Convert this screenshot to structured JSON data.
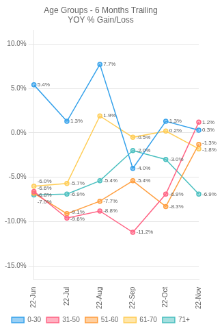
{
  "chart_data": {
    "type": "line",
    "title": "Age Groups - 6 Months Trailing\nYOY % Gain/Loss",
    "categories": [
      "22-Jun",
      "22-Jul",
      "22-Aug",
      "22-Sep",
      "22-Oct",
      "22-Nov"
    ],
    "series": [
      {
        "name": "0-30",
        "values": [
          5.4,
          1.3,
          7.7,
          -4.0,
          1.3,
          0.3
        ],
        "value_labels": [
          "5.4%",
          "1.3%",
          "7.7%",
          "-4.0%",
          "1.3%",
          "0.3%"
        ]
      },
      {
        "name": "31-50",
        "values": [
          -6.6,
          -9.6,
          -8.8,
          -11.2,
          -6.9,
          1.2
        ],
        "value_labels": [
          "-6.6%",
          "-9.6%",
          "-8.8%",
          "-11.2%",
          "-6.9%",
          "1.2%"
        ]
      },
      {
        "name": "51-60",
        "values": [
          -6.8,
          -9.1,
          -7.7,
          -5.4,
          -8.3,
          -1.3
        ],
        "value_labels": [
          "-6.8%",
          "-9.1%",
          "-7.7%",
          "-5.4%",
          "-8.3%",
          "-1.3%"
        ]
      },
      {
        "name": "61-70",
        "values": [
          -6.0,
          -5.7,
          1.9,
          -0.5,
          0.2,
          -1.8
        ],
        "value_labels": [
          "-6.0%",
          "-5.7%",
          "1.9%",
          "-0.5%",
          "0.2%",
          "-1.8%"
        ]
      },
      {
        "name": "71+",
        "values": [
          -7.0,
          -6.9,
          -5.4,
          -2.0,
          -3.0,
          -6.9
        ],
        "value_labels": [
          "-7.0%",
          "-6.9%",
          "-5.4%",
          "-2.0%",
          "-3.0%",
          "-6.9%"
        ]
      }
    ],
    "ylim": [
      -16.5,
      11.5
    ],
    "yticks": [
      {
        "value": -15.0,
        "label": "-15.0%"
      },
      {
        "value": -10.0,
        "label": "-10.0%"
      },
      {
        "value": -5.0,
        "label": "-5.0%"
      },
      {
        "value": 0.0,
        "label": "0.0%"
      },
      {
        "value": 5.0,
        "label": "5.0%"
      },
      {
        "value": 10.0,
        "label": "10.0%"
      }
    ],
    "grid": true,
    "legend": "bottom",
    "data_labels": true,
    "marker": "circle",
    "line_style": "solid"
  }
}
